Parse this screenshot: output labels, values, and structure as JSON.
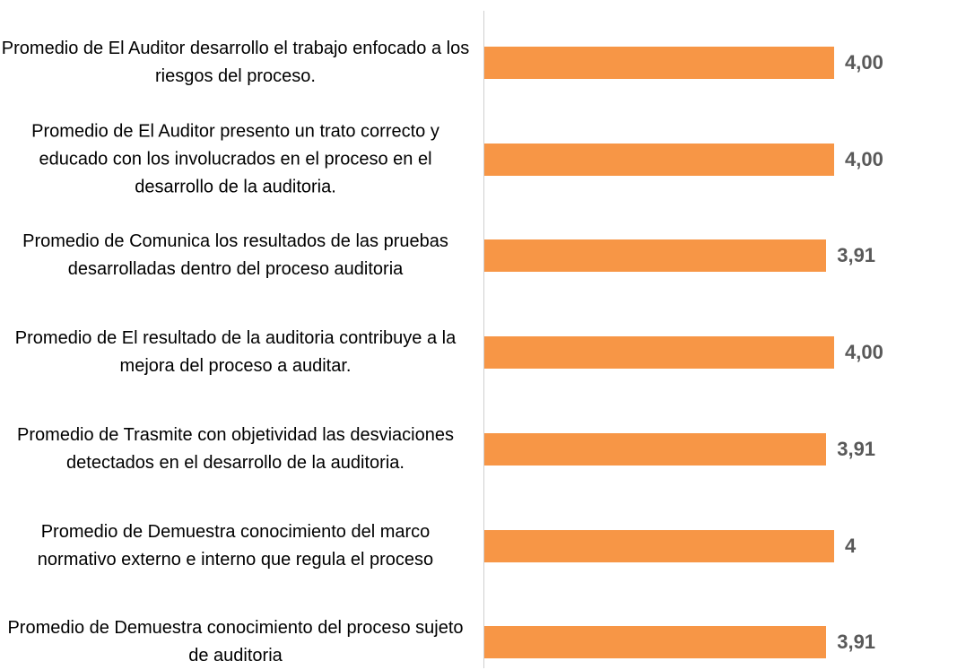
{
  "chart_data": {
    "type": "bar",
    "orientation": "horizontal",
    "categories": [
      "Promedio de El Auditor desarrollo el trabajo enfocado a los riesgos del proceso.",
      "Promedio de El Auditor presento un trato correcto y educado con los involucrados en el proceso en el desarrollo de la auditoria.",
      "Promedio de Comunica los resultados de las pruebas desarrolladas dentro del proceso auditoria",
      "Promedio de El resultado de la auditoria contribuye a la mejora del proceso a auditar.",
      "Promedio de Trasmite con objetividad las desviaciones detectados en el desarrollo de la auditoria.",
      "Promedio de Demuestra conocimiento del marco normativo externo e interno que regula el proceso",
      "Promedio de Demuestra conocimiento del proceso sujeto de auditoria"
    ],
    "values": [
      4,
      4,
      3.91,
      4,
      3.91,
      4,
      3.91
    ],
    "value_labels": [
      "4,00",
      "4,00",
      "3,91",
      "4,00",
      "3,91",
      "4",
      "3,91"
    ],
    "color": "#f79646"
  }
}
